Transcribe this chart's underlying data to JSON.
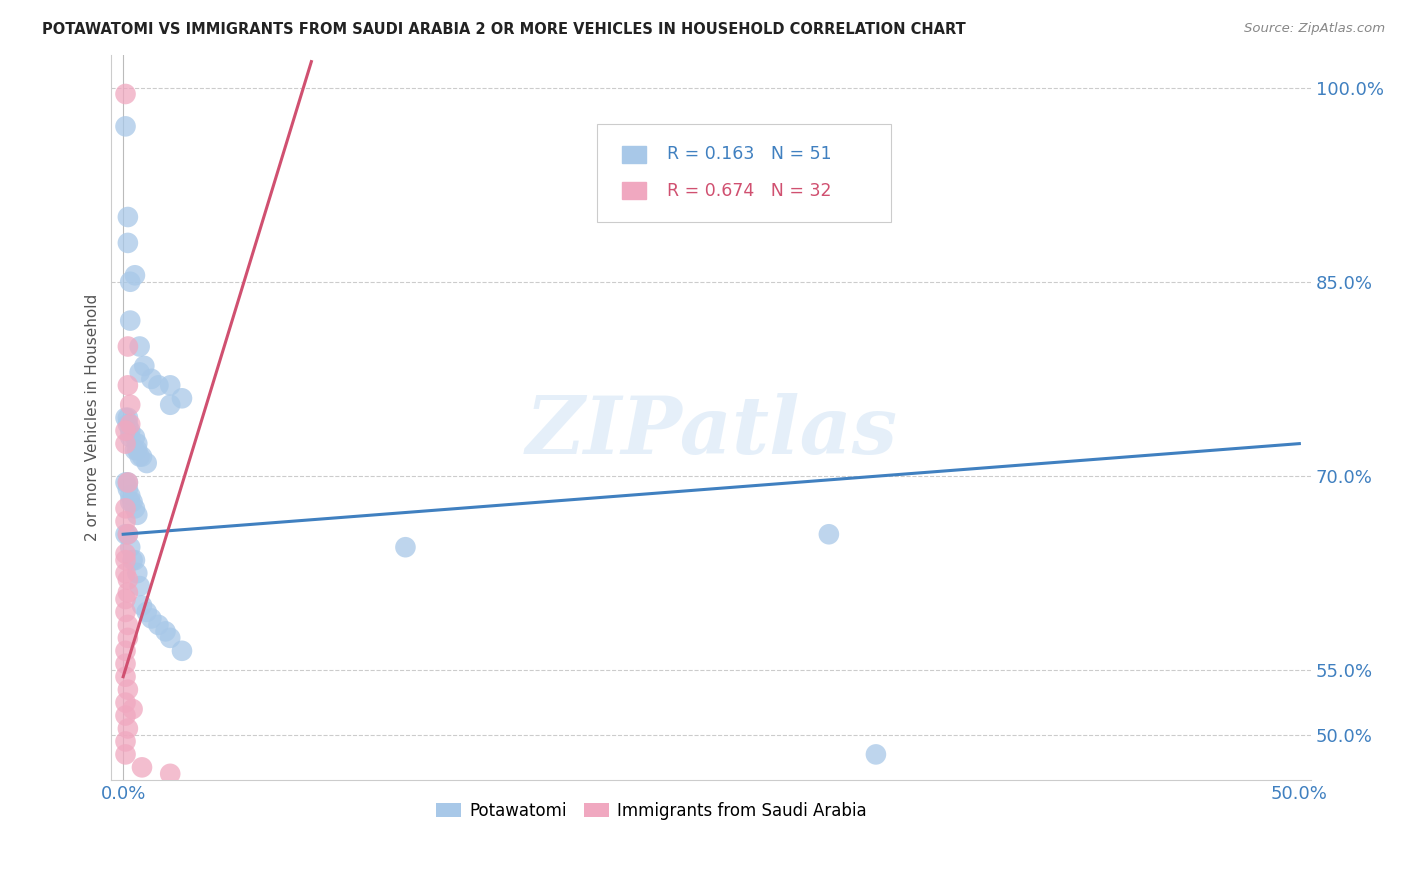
{
  "title": "POTAWATOMI VS IMMIGRANTS FROM SAUDI ARABIA 2 OR MORE VEHICLES IN HOUSEHOLD CORRELATION CHART",
  "source": "Source: ZipAtlas.com",
  "ylabel": "2 or more Vehicles in Household",
  "xlim": [
    -0.005,
    0.505
  ],
  "ylim": [
    0.465,
    1.025
  ],
  "ytick_vals": [
    0.5,
    0.55,
    0.7,
    0.85,
    1.0
  ],
  "ytick_labels": [
    "50.0%",
    "55.0%",
    "70.0%",
    "85.0%",
    "100.0%"
  ],
  "xtick_vals": [
    0.0,
    0.1,
    0.2,
    0.3,
    0.4,
    0.5
  ],
  "xtick_labels": [
    "0.0%",
    "",
    "",
    "",
    "",
    "50.0%"
  ],
  "blue_R": 0.163,
  "blue_N": 51,
  "pink_R": 0.674,
  "pink_N": 32,
  "blue_scatter_color": "#a8c8e8",
  "pink_scatter_color": "#f0a8c0",
  "blue_line_color": "#4080c0",
  "pink_line_color": "#d05070",
  "legend_blue_label": "Potawatomi",
  "legend_pink_label": "Immigrants from Saudi Arabia",
  "watermark": "ZIPatlas",
  "blue_trendline": [
    0.0,
    0.655,
    0.5,
    0.725
  ],
  "pink_trendline": [
    0.0,
    0.545,
    0.08,
    1.02
  ],
  "blue_points": [
    [
      0.001,
      0.97
    ],
    [
      0.002,
      0.9
    ],
    [
      0.002,
      0.88
    ],
    [
      0.003,
      0.85
    ],
    [
      0.003,
      0.82
    ],
    [
      0.005,
      0.855
    ],
    [
      0.007,
      0.8
    ],
    [
      0.007,
      0.78
    ],
    [
      0.009,
      0.785
    ],
    [
      0.012,
      0.775
    ],
    [
      0.015,
      0.77
    ],
    [
      0.02,
      0.77
    ],
    [
      0.02,
      0.755
    ],
    [
      0.025,
      0.76
    ],
    [
      0.001,
      0.745
    ],
    [
      0.002,
      0.745
    ],
    [
      0.002,
      0.74
    ],
    [
      0.003,
      0.735
    ],
    [
      0.003,
      0.73
    ],
    [
      0.005,
      0.73
    ],
    [
      0.005,
      0.72
    ],
    [
      0.006,
      0.725
    ],
    [
      0.006,
      0.72
    ],
    [
      0.007,
      0.715
    ],
    [
      0.008,
      0.715
    ],
    [
      0.01,
      0.71
    ],
    [
      0.001,
      0.695
    ],
    [
      0.002,
      0.695
    ],
    [
      0.002,
      0.69
    ],
    [
      0.003,
      0.685
    ],
    [
      0.003,
      0.68
    ],
    [
      0.004,
      0.68
    ],
    [
      0.005,
      0.675
    ],
    [
      0.006,
      0.67
    ],
    [
      0.001,
      0.655
    ],
    [
      0.002,
      0.655
    ],
    [
      0.003,
      0.645
    ],
    [
      0.004,
      0.635
    ],
    [
      0.005,
      0.635
    ],
    [
      0.006,
      0.625
    ],
    [
      0.007,
      0.615
    ],
    [
      0.008,
      0.6
    ],
    [
      0.01,
      0.595
    ],
    [
      0.012,
      0.59
    ],
    [
      0.015,
      0.585
    ],
    [
      0.018,
      0.58
    ],
    [
      0.02,
      0.575
    ],
    [
      0.025,
      0.565
    ],
    [
      0.12,
      0.645
    ],
    [
      0.3,
      0.655
    ],
    [
      0.32,
      0.485
    ]
  ],
  "pink_points": [
    [
      0.001,
      0.995
    ],
    [
      0.002,
      0.8
    ],
    [
      0.002,
      0.77
    ],
    [
      0.003,
      0.755
    ],
    [
      0.003,
      0.74
    ],
    [
      0.001,
      0.735
    ],
    [
      0.001,
      0.725
    ],
    [
      0.002,
      0.695
    ],
    [
      0.001,
      0.675
    ],
    [
      0.001,
      0.665
    ],
    [
      0.002,
      0.655
    ],
    [
      0.001,
      0.64
    ],
    [
      0.001,
      0.635
    ],
    [
      0.001,
      0.625
    ],
    [
      0.002,
      0.62
    ],
    [
      0.002,
      0.61
    ],
    [
      0.001,
      0.605
    ],
    [
      0.001,
      0.595
    ],
    [
      0.002,
      0.585
    ],
    [
      0.002,
      0.575
    ],
    [
      0.001,
      0.565
    ],
    [
      0.001,
      0.555
    ],
    [
      0.001,
      0.545
    ],
    [
      0.002,
      0.535
    ],
    [
      0.001,
      0.525
    ],
    [
      0.001,
      0.515
    ],
    [
      0.002,
      0.505
    ],
    [
      0.001,
      0.495
    ],
    [
      0.001,
      0.485
    ],
    [
      0.004,
      0.52
    ],
    [
      0.008,
      0.475
    ],
    [
      0.02,
      0.47
    ]
  ]
}
